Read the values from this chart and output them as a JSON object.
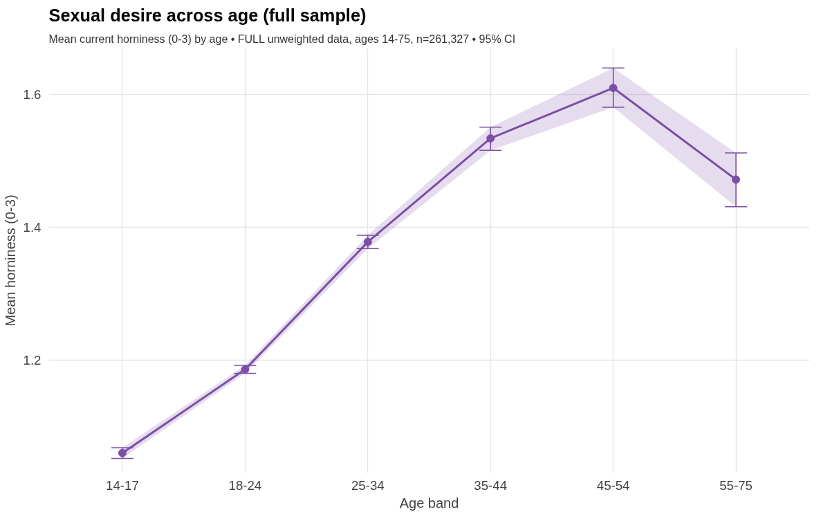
{
  "chart_data": {
    "type": "line",
    "title": "Sexual desire across age (full sample)",
    "subtitle": "Mean current horniness (0-3) by age  •  FULL unweighted data, ages 14-75, n=261,327  •  95% CI",
    "xlabel": "Age band",
    "ylabel": "Mean horniness (0-3)",
    "categories": [
      "14-17",
      "18-24",
      "25-34",
      "35-44",
      "45-54",
      "55-75"
    ],
    "series": [
      {
        "color": "#7b4fa6",
        "values": [
          1.06,
          1.186,
          1.378,
          1.534,
          1.61,
          1.472
        ],
        "errors": [
          0.008,
          0.006,
          0.01,
          [
            1.516,
            1.551
          ],
          [
            1.581,
            1.64
          ],
          [
            1.431,
            1.512
          ]
        ],
        "lower": [
          1.052,
          1.18,
          1.368,
          1.516,
          1.581,
          1.431
        ],
        "upper": [
          1.068,
          1.192,
          1.388,
          1.551,
          1.64,
          1.512
        ]
      }
    ],
    "marker": "circle",
    "line_style": "solid",
    "ylim": [
      1.03,
      1.67
    ],
    "yticks": [
      1.2,
      1.4,
      1.6
    ],
    "grid": true
  }
}
